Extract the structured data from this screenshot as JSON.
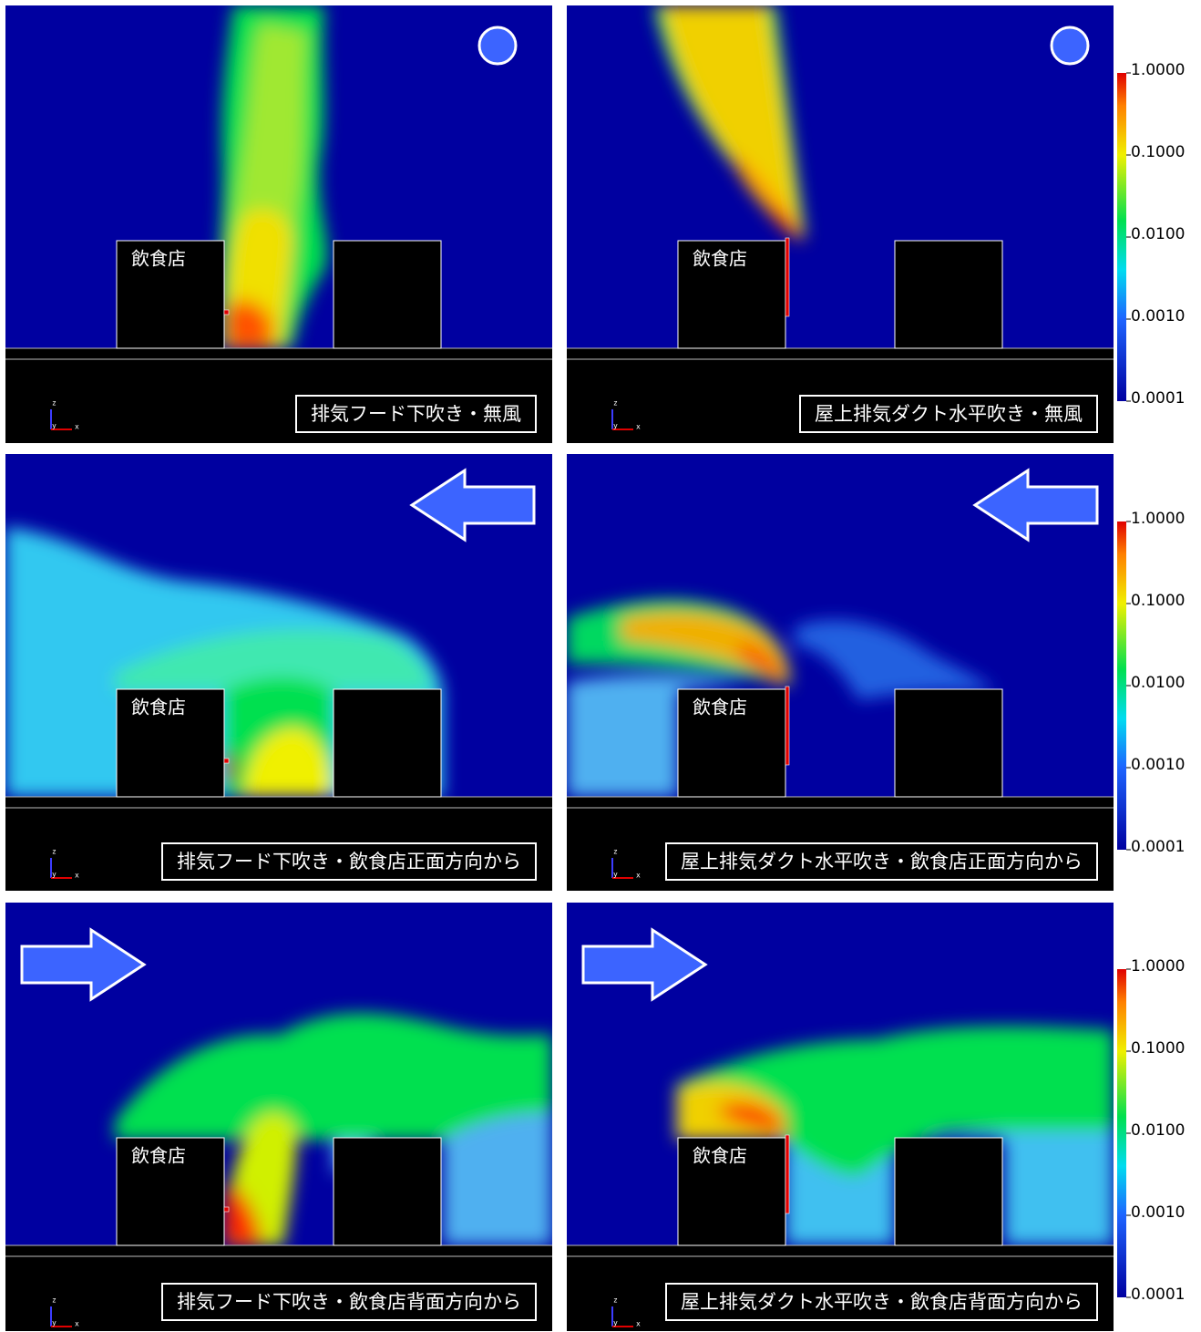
{
  "panels": [
    {
      "building_label": "飲食店",
      "caption": "排気フード下吹き・無風"
    },
    {
      "building_label": "飲食店",
      "caption": "屋上排気ダクト水平吹き・無風"
    },
    {
      "building_label": "飲食店",
      "caption": "排気フード下吹き・飲食店正面方向から"
    },
    {
      "building_label": "飲食店",
      "caption": "屋上排気ダクト水平吹き・飲食店正面方向から"
    },
    {
      "building_label": "飲食店",
      "caption": "排気フード下吹き・飲食店背面方向から"
    },
    {
      "building_label": "飲食店",
      "caption": "屋上排気ダクト水平吹き・飲食店背面方向から"
    }
  ],
  "axis_labels": [
    "z",
    "y",
    "x"
  ],
  "colorbar": {
    "ticks": [
      "1.0000",
      "0.1000",
      "0.0100",
      "0.0010",
      "0.0001"
    ]
  }
}
